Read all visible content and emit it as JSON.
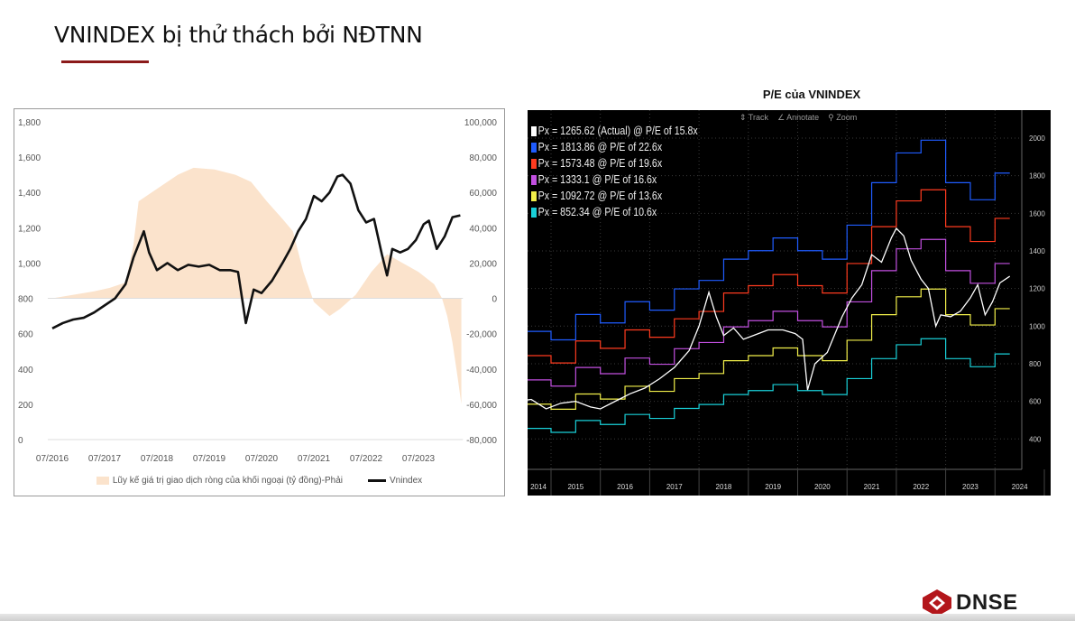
{
  "slide": {
    "title": "VNINDEX bị thử thách bởi NĐTNN",
    "logo_text": "DNSE",
    "brand_color": "#8b1a1a"
  },
  "chart_data": [
    {
      "type": "line+area",
      "title": "",
      "x_ticks": [
        "07/2016",
        "07/2017",
        "07/2018",
        "07/2019",
        "07/2020",
        "07/2021",
        "07/2022",
        "07/2023"
      ],
      "y_left": {
        "range": [
          0,
          1800
        ],
        "ticks": [
          "0",
          "200",
          "400",
          "600",
          "800",
          "1,000",
          "1,200",
          "1,400",
          "1,600",
          "1,800"
        ]
      },
      "y_right": {
        "range": [
          -80000,
          100000
        ],
        "ticks": [
          "-80,000",
          "-60,000",
          "-40,000",
          "-20,000",
          "0",
          "20,000",
          "40,000",
          "60,000",
          "80,000",
          "100,000"
        ]
      },
      "legend_position": "bottom",
      "grid": false,
      "series": [
        {
          "name": "Lũy kế giá trị giao dịch ròng của khối ngoại (tỷ đồng)-Phải",
          "type": "area",
          "axis": "right",
          "color": "#fbe3cc",
          "x": [
            2016.5,
            2016.9,
            2017.3,
            2017.6,
            2017.9,
            2018.05,
            2018.15,
            2018.5,
            2018.9,
            2019.2,
            2019.6,
            2020.0,
            2020.3,
            2020.6,
            2020.9,
            2021.1,
            2021.3,
            2021.5,
            2021.8,
            2022.0,
            2022.3,
            2022.6,
            2022.9,
            2023.2,
            2023.5,
            2023.8,
            2023.95,
            2024.05,
            2024.15,
            2024.25,
            2024.32
          ],
          "values": [
            0,
            2000,
            4000,
            6000,
            9000,
            30000,
            55000,
            62000,
            70000,
            74000,
            73000,
            70000,
            66000,
            55000,
            45000,
            38000,
            15000,
            -2000,
            -10000,
            -6000,
            2000,
            15000,
            25000,
            20000,
            15000,
            8000,
            0,
            -10000,
            -25000,
            -45000,
            -60000
          ]
        },
        {
          "name": "Vnindex",
          "type": "line",
          "axis": "left",
          "color": "#111111",
          "x": [
            2016.5,
            2016.7,
            2016.9,
            2017.1,
            2017.3,
            2017.5,
            2017.7,
            2017.9,
            2018.05,
            2018.25,
            2018.35,
            2018.5,
            2018.7,
            2018.9,
            2019.1,
            2019.3,
            2019.5,
            2019.7,
            2019.9,
            2020.05,
            2020.2,
            2020.35,
            2020.5,
            2020.7,
            2020.9,
            2021.05,
            2021.2,
            2021.35,
            2021.5,
            2021.65,
            2021.8,
            2021.95,
            2022.05,
            2022.2,
            2022.35,
            2022.5,
            2022.65,
            2022.8,
            2022.9,
            2023.0,
            2023.15,
            2023.3,
            2023.45,
            2023.6,
            2023.7,
            2023.85,
            2024.0,
            2024.15,
            2024.3
          ],
          "values": [
            630,
            660,
            680,
            690,
            720,
            760,
            800,
            880,
            1030,
            1180,
            1060,
            960,
            1000,
            960,
            990,
            980,
            990,
            960,
            960,
            950,
            660,
            850,
            830,
            900,
            1000,
            1080,
            1180,
            1250,
            1380,
            1350,
            1400,
            1490,
            1500,
            1450,
            1300,
            1230,
            1250,
            1050,
            930,
            1080,
            1060,
            1080,
            1130,
            1220,
            1240,
            1080,
            1150,
            1260,
            1270
          ]
        }
      ]
    },
    {
      "type": "line",
      "title": "P/E của VNINDEX",
      "toolbar": [
        "Track",
        "Annotate",
        "Zoom"
      ],
      "x_ticks": [
        "2014",
        "2015",
        "2016",
        "2017",
        "2018",
        "2019",
        "2020",
        "2021",
        "2022",
        "2023",
        "2024"
      ],
      "y_right": {
        "range": [
          300,
          2100
        ],
        "ticks": [
          "400",
          "600",
          "800",
          "1000",
          "1200",
          "1400",
          "1600",
          "1800",
          "2000"
        ]
      },
      "grid": true,
      "legend_position": "top-left",
      "band_x": [
        2014.0,
        2014.5,
        2015.0,
        2015.5,
        2016.0,
        2016.5,
        2017.0,
        2017.5,
        2018.0,
        2018.5,
        2019.0,
        2019.5,
        2020.0,
        2020.5,
        2021.0,
        2021.5,
        2022.0,
        2022.5,
        2023.0,
        2023.5,
        2024.0,
        2024.3
      ],
      "series": [
        {
          "label": "Px = 1265.62 (Actual) @ P/E of 15.8x",
          "color": "#ffffff",
          "type": "actual",
          "x": [
            2014.0,
            2014.3,
            2014.6,
            2014.9,
            2015.2,
            2015.5,
            2015.8,
            2016.0,
            2016.3,
            2016.6,
            2016.9,
            2017.2,
            2017.5,
            2017.8,
            2018.0,
            2018.2,
            2018.35,
            2018.5,
            2018.7,
            2018.9,
            2019.1,
            2019.4,
            2019.7,
            2019.95,
            2020.1,
            2020.2,
            2020.35,
            2020.6,
            2020.9,
            2021.1,
            2021.3,
            2021.5,
            2021.7,
            2021.9,
            2022.0,
            2022.15,
            2022.3,
            2022.5,
            2022.65,
            2022.8,
            2022.9,
            2023.1,
            2023.3,
            2023.5,
            2023.65,
            2023.8,
            2023.95,
            2024.1,
            2024.3
          ],
          "values": [
            580,
            600,
            610,
            560,
            590,
            600,
            570,
            560,
            600,
            640,
            670,
            720,
            780,
            870,
            1000,
            1180,
            1050,
            950,
            990,
            930,
            950,
            980,
            980,
            960,
            930,
            660,
            800,
            860,
            1050,
            1150,
            1220,
            1380,
            1340,
            1470,
            1520,
            1480,
            1350,
            1250,
            1200,
            1000,
            1060,
            1050,
            1080,
            1150,
            1220,
            1060,
            1130,
            1230,
            1265
          ]
        },
        {
          "label": "Px = 1813.86 @ P/E of 22.6x",
          "color": "#1f5cff",
          "type": "band",
          "values": [
            904,
            972,
            927,
            1062,
            1017,
            1130,
            1085,
            1198,
            1243,
            1356,
            1401,
            1469,
            1401,
            1356,
            1537,
            1763,
            1921,
            1989,
            1763,
            1672,
            1814,
            1814
          ]
        },
        {
          "label": "Px = 1573.48 @ P/E of 19.6x",
          "color": "#ff3b1f",
          "type": "band",
          "values": [
            784,
            843,
            804,
            921,
            882,
            980,
            941,
            1039,
            1078,
            1176,
            1215,
            1274,
            1215,
            1176,
            1333,
            1529,
            1666,
            1725,
            1529,
            1450,
            1573,
            1573
          ]
        },
        {
          "label": "Px = 1333.1 @ P/E of 16.6x",
          "color": "#c24fe0",
          "type": "band",
          "values": [
            664,
            714,
            681,
            780,
            747,
            830,
            797,
            880,
            913,
            996,
            1029,
            1079,
            1029,
            996,
            1129,
            1295,
            1411,
            1461,
            1295,
            1228,
            1333,
            1333
          ]
        },
        {
          "label": "Px = 1092.72 @ P/E of 13.6x",
          "color": "#f2ef4a",
          "type": "band",
          "values": [
            544,
            585,
            558,
            639,
            612,
            680,
            653,
            721,
            748,
            816,
            843,
            884,
            843,
            816,
            925,
            1061,
            1156,
            1197,
            1061,
            1006,
            1093,
            1093
          ]
        },
        {
          "label": "Px = 852.34 @ P/E of 10.6x",
          "color": "#19d0d8",
          "type": "band",
          "values": [
            424,
            456,
            435,
            498,
            477,
            530,
            509,
            562,
            583,
            636,
            657,
            689,
            657,
            636,
            721,
            827,
            901,
            933,
            827,
            784,
            852,
            852
          ]
        }
      ]
    }
  ]
}
